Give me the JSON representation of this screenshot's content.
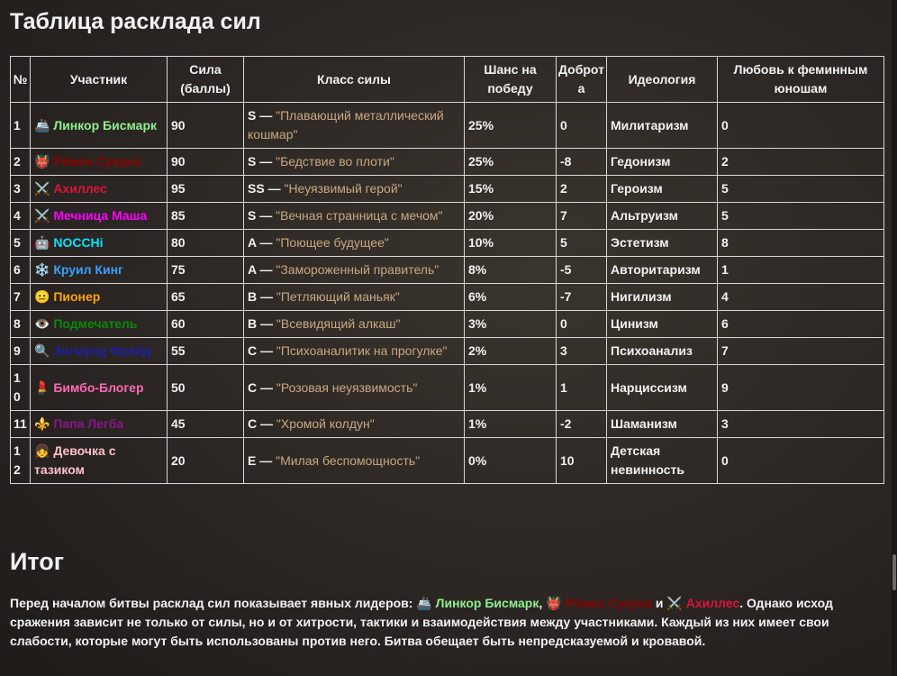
{
  "header": {
    "title": "Таблица расклада сил"
  },
  "table": {
    "columns": [
      "№",
      "Участник",
      "Сила (баллы)",
      "Класс силы",
      "Шанс на победу",
      "Доброта",
      "Идеология",
      "Любовь к феминным юношам"
    ],
    "rows": [
      {
        "num": 1,
        "icon": "🚢",
        "name": "Линкор Бисмарк",
        "color": "#90ee90",
        "power": 90,
        "grade": "S —",
        "class_name": "\"Плавающий металлический кошмар\"",
        "chance": "25%",
        "kindness": 0,
        "ideology": "Милитаризм",
        "love": 0
      },
      {
        "num": 2,
        "icon": "👹",
        "name": "Рёмен Сукуна",
        "color": "#8b0000",
        "power": 90,
        "grade": "S —",
        "class_name": "\"Бедствие во плоти\"",
        "chance": "25%",
        "kindness": -8,
        "ideology": "Гедонизм",
        "love": 2
      },
      {
        "num": 3,
        "icon": "⚔️",
        "name": "Ахиллес",
        "color": "#dc143c",
        "power": 95,
        "grade": "SS —",
        "class_name": "\"Неуязвимый герой\"",
        "chance": "15%",
        "kindness": 2,
        "ideology": "Героизм",
        "love": 5
      },
      {
        "num": 4,
        "icon": "⚔️",
        "name": "Мечница Маша",
        "color": "#ff00ff",
        "power": 85,
        "grade": "S —",
        "class_name": "\"Вечная странница с мечом\"",
        "chance": "20%",
        "kindness": 7,
        "ideology": "Альтруизм",
        "love": 5
      },
      {
        "num": 5,
        "icon": "🤖",
        "name": "NOCCHi",
        "color": "#00e5ff",
        "power": 80,
        "grade": "A —",
        "class_name": "\"Поющее будущее\"",
        "chance": "10%",
        "kindness": 5,
        "ideology": "Эстетизм",
        "love": 8
      },
      {
        "num": 6,
        "icon": "❄️",
        "name": "Круил Кинг",
        "color": "#3aa0ff",
        "power": 75,
        "grade": "A —",
        "class_name": "\"Замороженный правитель\"",
        "chance": "8%",
        "kindness": -5,
        "ideology": "Авторитаризм",
        "love": 1
      },
      {
        "num": 7,
        "icon": "😐",
        "name": "Пионер",
        "color": "#ffa500",
        "power": 65,
        "grade": "B —",
        "class_name": "\"Петляющий маньяк\"",
        "chance": "6%",
        "kindness": -7,
        "ideology": "Нигилизм",
        "love": 4
      },
      {
        "num": 8,
        "icon": "👁️",
        "name": "Подмечатель",
        "color": "#0a8a0a",
        "power": 60,
        "grade": "B —",
        "class_name": "\"Всевидящий алкаш\"",
        "chance": "3%",
        "kindness": 0,
        "ideology": "Цинизм",
        "love": 6
      },
      {
        "num": 9,
        "icon": "🔍",
        "name": "Зигмунд Фрейд",
        "color": "#1e1ea8",
        "power": 55,
        "grade": "C —",
        "class_name": "\"Психоаналитик на прогулке\"",
        "chance": "2%",
        "kindness": 3,
        "ideology": "Психоанализ",
        "love": 7
      },
      {
        "num": 10,
        "icon": "💄",
        "name": "Бимбо-Блогер",
        "color": "#ff69b4",
        "power": 50,
        "grade": "C —",
        "class_name": "\"Розовая неуязвимость\"",
        "chance": "1%",
        "kindness": 1,
        "ideology": "Нарциссизм",
        "love": 9
      },
      {
        "num": 11,
        "icon": "⚜️",
        "name": "Папа Легба",
        "color": "#8a168a",
        "power": 45,
        "grade": "C —",
        "class_name": "\"Хромой колдун\"",
        "chance": "1%",
        "kindness": -2,
        "ideology": "Шаманизм",
        "love": 3
      },
      {
        "num": 12,
        "icon": "👧",
        "name": "Девочка с тазиком",
        "color": "#ffc0cb",
        "power": 20,
        "grade": "E —",
        "class_name": "\"Милая беспомощность\"",
        "chance": "0%",
        "kindness": 10,
        "ideology": "Детская невинность",
        "love": 0
      }
    ]
  },
  "summary": {
    "title": "Итог",
    "segments": [
      {
        "text": "Перед началом битвы расклад сил показывает явных лидеров: "
      },
      {
        "icon": "🚢",
        "text": "Линкор Бисмарк",
        "color": "#90ee90"
      },
      {
        "text": ", "
      },
      {
        "icon": "👹",
        "text": "Рёмен Сукуна",
        "color": "#8b0000"
      },
      {
        "text": " и "
      },
      {
        "icon": "⚔️",
        "text": "Ахиллес",
        "color": "#dc143c"
      },
      {
        "text": ". Однако исход сражения зависит не только от силы, но и от хитрости, тактики и взаимодействия между участниками. Каждый из них имеет свои слабости, которые могут быть использованы против него. Битва обещает быть непредсказуемой и кровавой."
      }
    ]
  }
}
